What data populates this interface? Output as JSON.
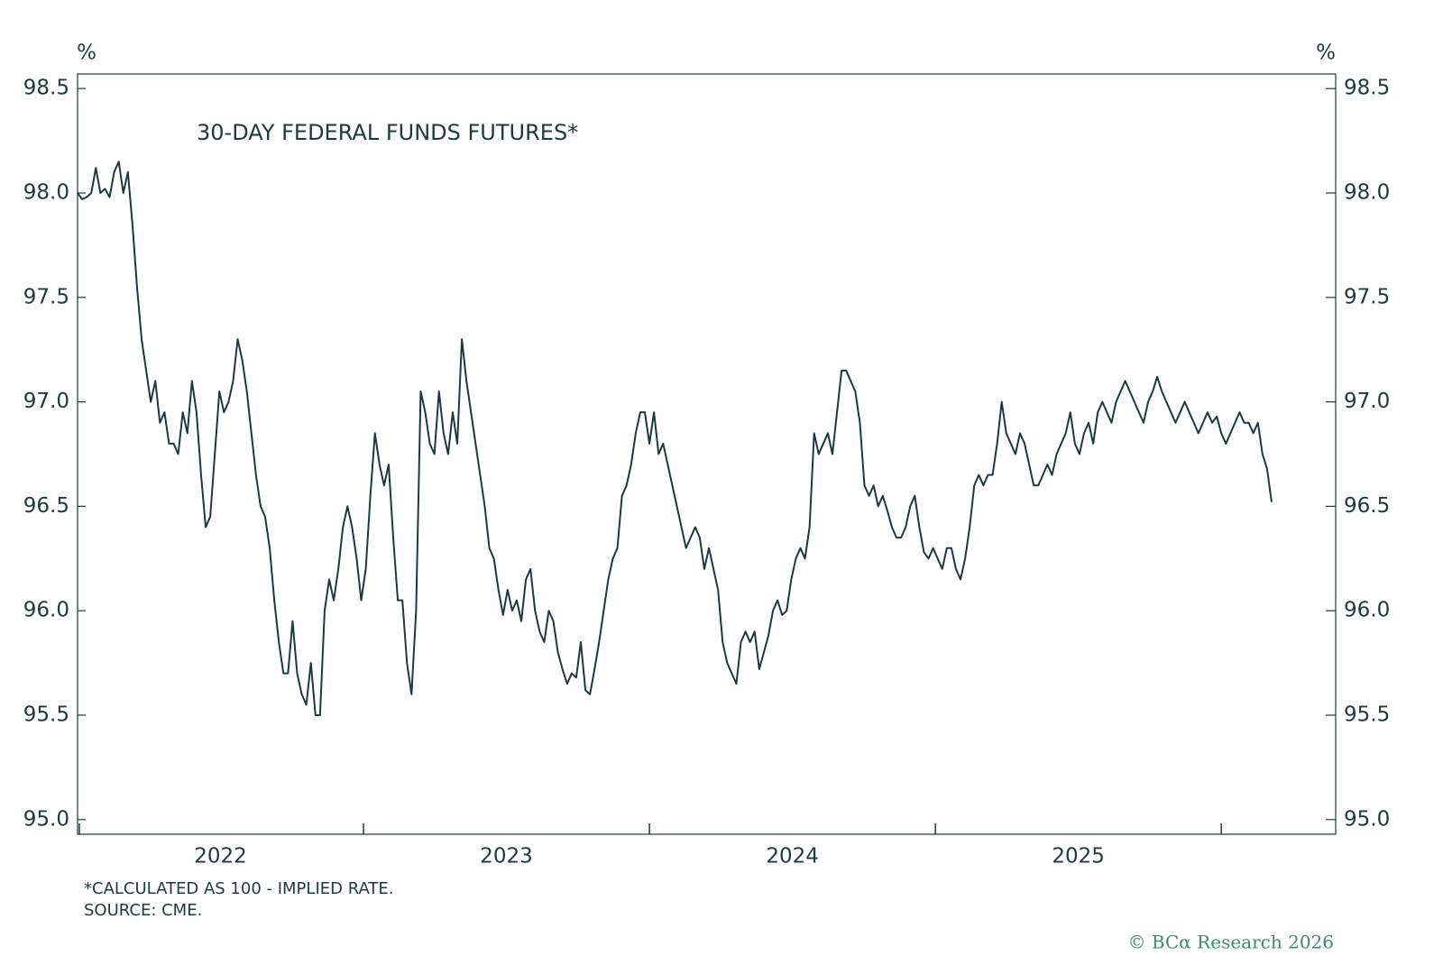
{
  "chart_data": {
    "type": "line",
    "title": "30-DAY FEDERAL FUNDS FUTURES*",
    "y_unit": "%",
    "y2_unit": "%",
    "footnote": "*CALCULATED AS 100 - IMPLIED RATE.",
    "source": "SOURCE: CME.",
    "credit": "© BCα Research 2026",
    "xlim": [
      2022,
      2026.4
    ],
    "xticks": [
      2022,
      2023,
      2024,
      2025,
      2026
    ],
    "xtick_labels": [
      {
        "value": 2022.5,
        "label": "2022"
      },
      {
        "value": 2023.5,
        "label": "2023"
      },
      {
        "value": 2024.5,
        "label": "2024"
      },
      {
        "value": 2025.5,
        "label": "2025"
      }
    ],
    "ylim": [
      94.93,
      98.57
    ],
    "yticks": [
      {
        "value": 95.0,
        "label": "95.0"
      },
      95.5,
      {
        "value": 96.0,
        "label": "96.0"
      },
      96.5,
      {
        "value": 97.0,
        "label": "97.0"
      },
      97.5,
      {
        "value": 98.0,
        "label": "98.0"
      },
      98.5
    ],
    "y2lim": [
      94.93,
      98.57
    ],
    "y2ticks": [
      {
        "value": 95.0,
        "label": "95.0"
      },
      95.5,
      {
        "value": 96.0,
        "label": "96.0"
      },
      96.5,
      {
        "value": 97.0,
        "label": "97.0"
      },
      97.5,
      {
        "value": 98.0,
        "label": "98.0"
      },
      98.5
    ],
    "x": [
      2022,
      2022.016,
      2022.032,
      2022.048,
      2022.064,
      2022.08,
      2022.096,
      2022.112,
      2022.128,
      2022.144,
      2022.16,
      2022.176,
      2022.192,
      2022.208,
      2022.224,
      2022.24,
      2022.256,
      2022.272,
      2022.288,
      2022.304,
      2022.32,
      2022.336,
      2022.352,
      2022.368,
      2022.384,
      2022.4,
      2022.416,
      2022.432,
      2022.448,
      2022.464,
      2022.48,
      2022.496,
      2022.512,
      2022.528,
      2022.544,
      2022.56,
      2022.576,
      2022.592,
      2022.608,
      2022.624,
      2022.64,
      2022.656,
      2022.672,
      2022.688,
      2022.704,
      2022.72,
      2022.736,
      2022.752,
      2022.768,
      2022.784,
      2022.8,
      2022.816,
      2022.832,
      2022.848,
      2022.864,
      2022.88,
      2022.896,
      2022.912,
      2022.928,
      2022.944,
      2022.96,
      2022.976,
      2022.992,
      2023.008,
      2023.024,
      2023.04,
      2023.056,
      2023.072,
      2023.088,
      2023.104,
      2023.12,
      2023.136,
      2023.152,
      2023.168,
      2023.184,
      2023.2,
      2023.216,
      2023.232,
      2023.248,
      2023.264,
      2023.28,
      2023.296,
      2023.312,
      2023.328,
      2023.344,
      2023.36,
      2023.376,
      2023.392,
      2023.408,
      2023.424,
      2023.44,
      2023.456,
      2023.472,
      2023.488,
      2023.504,
      2023.52,
      2023.536,
      2023.552,
      2023.568,
      2023.584,
      2023.6,
      2023.616,
      2023.632,
      2023.648,
      2023.664,
      2023.68,
      2023.696,
      2023.712,
      2023.728,
      2023.744,
      2023.76,
      2023.776,
      2023.792,
      2023.808,
      2023.824,
      2023.84,
      2023.856,
      2023.872,
      2023.888,
      2023.904,
      2023.92,
      2023.936,
      2023.952,
      2023.968,
      2023.984,
      2024,
      2024.016,
      2024.032,
      2024.048,
      2024.064,
      2024.08,
      2024.096,
      2024.112,
      2024.128,
      2024.144,
      2024.16,
      2024.176,
      2024.192,
      2024.208,
      2024.224,
      2024.24,
      2024.256,
      2024.272,
      2024.288,
      2024.304,
      2024.32,
      2024.336,
      2024.352,
      2024.368,
      2024.384,
      2024.4,
      2024.416,
      2024.432,
      2024.448,
      2024.464,
      2024.48,
      2024.496,
      2024.512,
      2024.528,
      2024.544,
      2024.56,
      2024.576,
      2024.592,
      2024.608,
      2024.624,
      2024.64,
      2024.656,
      2024.672,
      2024.688,
      2024.704,
      2024.72,
      2024.736,
      2024.752,
      2024.768,
      2024.784,
      2024.8,
      2024.816,
      2024.832,
      2024.848,
      2024.864,
      2024.88,
      2024.896,
      2024.912,
      2024.928,
      2024.944,
      2024.96,
      2024.976,
      2024.992,
      2025.008,
      2025.024,
      2025.04,
      2025.056,
      2025.072,
      2025.088,
      2025.104,
      2025.12,
      2025.136,
      2025.152,
      2025.168,
      2025.184,
      2025.2,
      2025.216,
      2025.232,
      2025.248,
      2025.264,
      2025.28,
      2025.296,
      2025.312,
      2025.328,
      2025.344,
      2025.36,
      2025.376,
      2025.392,
      2025.408,
      2025.424,
      2025.44,
      2025.456,
      2025.472,
      2025.488,
      2025.504,
      2025.52,
      2025.536,
      2025.552,
      2025.568,
      2025.584,
      2025.6,
      2025.616,
      2025.632,
      2025.648,
      2025.664,
      2025.68,
      2025.696,
      2025.712,
      2025.728,
      2025.744,
      2025.76,
      2025.776,
      2025.792,
      2025.808,
      2025.824,
      2025.84,
      2025.856,
      2025.872,
      2025.888,
      2025.904,
      2025.92,
      2025.936,
      2025.952,
      2025.968,
      2025.984,
      2026,
      2026.016,
      2026.032,
      2026.048,
      2026.064,
      2026.08,
      2026.096,
      2026.112,
      2026.128,
      2026.144,
      2026.16,
      2026.176
    ],
    "series": [
      {
        "color": "#1c3a3d",
        "values": [
          98.0,
          97.97,
          97.98,
          98.0,
          98.12,
          98.0,
          98.02,
          97.98,
          98.1,
          98.15,
          98.0,
          98.1,
          97.85,
          97.55,
          97.3,
          97.15,
          97.0,
          97.1,
          96.9,
          96.95,
          96.8,
          96.8,
          96.75,
          96.95,
          96.85,
          97.1,
          96.95,
          96.65,
          96.4,
          96.45,
          96.75,
          97.05,
          96.95,
          97.0,
          97.1,
          97.3,
          97.2,
          97.05,
          96.85,
          96.65,
          96.5,
          96.45,
          96.3,
          96.05,
          95.85,
          95.7,
          95.7,
          95.95,
          95.7,
          95.6,
          95.55,
          95.75,
          95.5,
          95.5,
          96.0,
          96.15,
          96.05,
          96.2,
          96.4,
          96.5,
          96.4,
          96.25,
          96.05,
          96.2,
          96.55,
          96.85,
          96.7,
          96.6,
          96.7,
          96.35,
          96.05,
          96.05,
          95.75,
          95.6,
          96.0,
          97.05,
          96.95,
          96.8,
          96.75,
          97.05,
          96.85,
          96.75,
          96.95,
          96.8,
          97.3,
          97.1,
          96.95,
          96.8,
          96.65,
          96.5,
          96.3,
          96.25,
          96.1,
          95.98,
          96.1,
          96.0,
          96.05,
          95.95,
          96.15,
          96.2,
          96.0,
          95.9,
          95.85,
          96.0,
          95.95,
          95.8,
          95.72,
          95.65,
          95.7,
          95.68,
          95.85,
          95.62,
          95.6,
          95.72,
          95.85,
          96.0,
          96.15,
          96.25,
          96.3,
          96.55,
          96.6,
          96.7,
          96.85,
          96.95,
          96.95,
          96.8,
          96.95,
          96.75,
          96.8,
          96.7,
          96.6,
          96.5,
          96.4,
          96.3,
          96.35,
          96.4,
          96.35,
          96.2,
          96.3,
          96.2,
          96.1,
          95.85,
          95.75,
          95.7,
          95.65,
          95.85,
          95.9,
          95.85,
          95.9,
          95.72,
          95.8,
          95.88,
          96.0,
          96.05,
          95.98,
          96.0,
          96.15,
          96.25,
          96.3,
          96.25,
          96.4,
          96.85,
          96.75,
          96.8,
          96.85,
          96.75,
          96.95,
          97.15,
          97.15,
          97.1,
          97.05,
          96.9,
          96.6,
          96.55,
          96.6,
          96.5,
          96.55,
          96.48,
          96.4,
          96.35,
          96.35,
          96.4,
          96.5,
          96.55,
          96.4,
          96.28,
          96.25,
          96.3,
          96.25,
          96.2,
          96.3,
          96.3,
          96.2,
          96.15,
          96.25,
          96.4,
          96.6,
          96.65,
          96.6,
          96.65,
          96.65,
          96.8,
          97.0,
          96.85,
          96.8,
          96.75,
          96.85,
          96.8,
          96.7,
          96.6,
          96.6,
          96.65,
          96.7,
          96.65,
          96.75,
          96.8,
          96.85,
          96.95,
          96.8,
          96.75,
          96.85,
          96.9,
          96.8,
          96.95,
          97.0,
          96.95,
          96.9,
          97.0,
          97.05,
          97.1,
          97.05,
          97.0,
          96.95,
          96.9,
          97.0,
          97.05,
          97.12,
          97.05,
          97.0,
          96.95,
          96.9,
          96.95,
          97.0,
          96.95,
          96.9,
          96.85,
          96.9,
          96.95,
          96.9,
          96.93,
          96.85,
          96.8,
          96.85,
          96.9,
          96.95,
          96.9,
          96.9,
          96.85,
          96.9,
          96.75,
          96.68,
          96.52
        ]
      }
    ]
  }
}
